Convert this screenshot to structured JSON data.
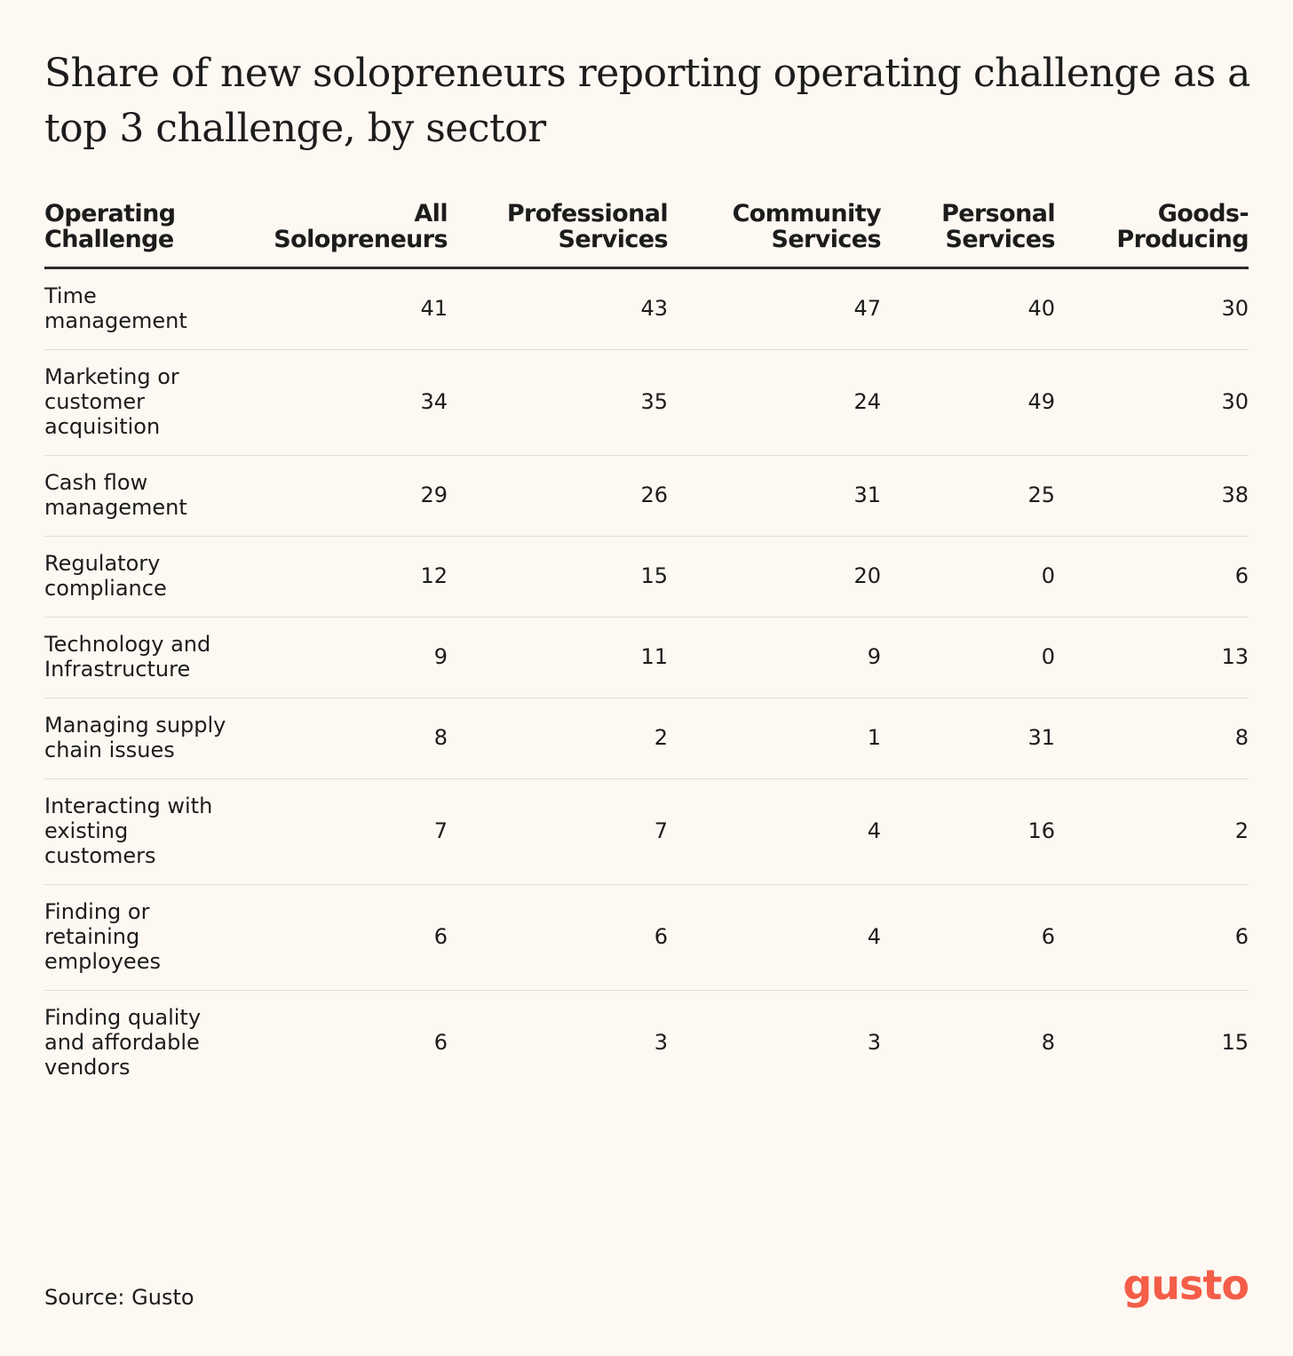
{
  "chart_data": {
    "type": "table",
    "title": "Share of new solopreneurs reporting operating challenge as a top 3 challenge, by sector",
    "columns": [
      "Operating Challenge",
      "All Solopreneurs",
      "Professional Services",
      "Community Services",
      "Personal Services",
      "Goods-Producing"
    ],
    "rows": [
      {
        "challenge": "Time management",
        "values": [
          41,
          43,
          47,
          40,
          30
        ]
      },
      {
        "challenge": "Marketing or customer acquisition",
        "values": [
          34,
          35,
          24,
          49,
          30
        ]
      },
      {
        "challenge": "Cash flow management",
        "values": [
          29,
          26,
          31,
          25,
          38
        ]
      },
      {
        "challenge": "Regulatory compliance",
        "values": [
          12,
          15,
          20,
          0,
          6
        ]
      },
      {
        "challenge": "Technology and Infrastructure",
        "values": [
          9,
          11,
          9,
          0,
          13
        ]
      },
      {
        "challenge": "Managing supply chain issues",
        "values": [
          8,
          2,
          1,
          31,
          8
        ]
      },
      {
        "challenge": "Interacting with existing customers",
        "values": [
          7,
          7,
          4,
          16,
          2
        ]
      },
      {
        "challenge": "Finding or retaining employees",
        "values": [
          6,
          6,
          4,
          6,
          6
        ]
      },
      {
        "challenge": "Finding quality and affordable vendors",
        "values": [
          6,
          3,
          3,
          8,
          15
        ]
      }
    ]
  },
  "footer": {
    "source": "Source: Gusto",
    "logo_text": "gusto",
    "logo_color": "#f45d48"
  },
  "colors": {
    "background": "#fdf8f1",
    "text": "#1c1c1c",
    "header_rule": "#2b2b2b",
    "row_divider": "#e3ddd3"
  }
}
